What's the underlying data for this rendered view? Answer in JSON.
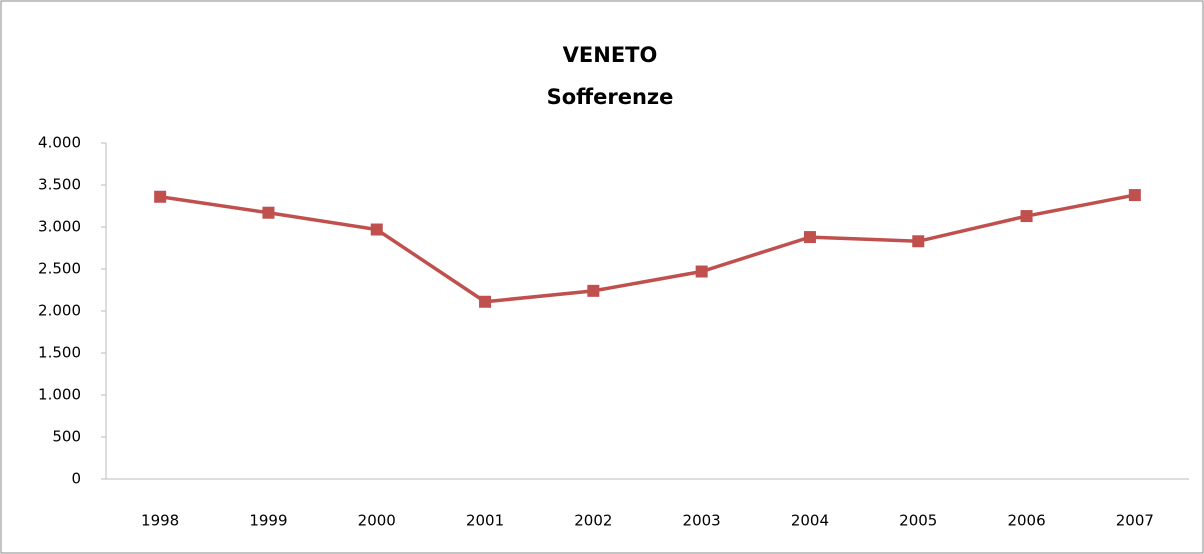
{
  "chart_data": {
    "type": "line",
    "title": "VENETO",
    "subtitle": "Sofferenze",
    "categories": [
      "1998",
      "1999",
      "2000",
      "2001",
      "2002",
      "2003",
      "2004",
      "2005",
      "2006",
      "2007"
    ],
    "series": [
      {
        "name": "Sofferenze",
        "color": "#c0504d",
        "values": [
          3360,
          3170,
          2970,
          2110,
          2240,
          2470,
          2880,
          2830,
          3130,
          3380
        ]
      }
    ],
    "ylim": [
      0,
      4000
    ],
    "yticks": [
      0,
      500,
      {
        "value": 1000,
        "label": "1.000"
      },
      {
        "value": 1500,
        "label": "1.500"
      },
      {
        "value": 2000,
        "label": "2.000"
      },
      {
        "value": 2500,
        "label": "2.500"
      },
      {
        "value": 3000,
        "label": "3.000"
      },
      {
        "value": 3500,
        "label": "3.500"
      },
      {
        "value": 4000,
        "label": "4.000"
      }
    ],
    "grid": false
  }
}
